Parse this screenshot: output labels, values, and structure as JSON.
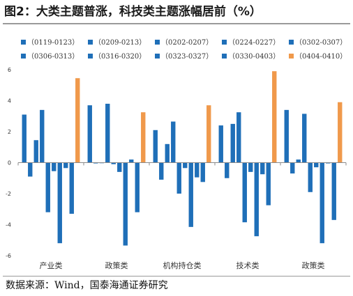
{
  "figure": {
    "title": "图2：大类主题普涨，科技类主题涨幅居前（%）",
    "source": "数据来源：Wind，国泰海通证券研究"
  },
  "colors": {
    "blue": "#1f6fb8",
    "orange": "#f0994b",
    "axis": "#8a8a8a",
    "text": "#333333"
  },
  "chart_data": {
    "type": "bar",
    "title": "",
    "xlabel": "",
    "ylabel": "",
    "ylim": [
      -6,
      6
    ],
    "yticks": [
      "6",
      "4",
      "2",
      "0",
      "-2",
      "-4",
      "-6"
    ],
    "legend_position": "top",
    "categories": [
      "产业类",
      "政策类",
      "机构持仓类",
      "技术类",
      "政策类"
    ],
    "series": [
      {
        "name": "（0119-0123）",
        "color": "#1f6fb8",
        "values": [
          3.1,
          3.7,
          2.1,
          2.4,
          3.4
        ]
      },
      {
        "name": "（0209-0213）",
        "color": "#1f6fb8",
        "values": [
          -0.9,
          -0.05,
          -1.1,
          -1.0,
          -0.7
        ]
      },
      {
        "name": "（0202-0207）",
        "color": "#1f6fb8",
        "values": [
          1.45,
          0.0,
          1.2,
          2.5,
          0.2
        ]
      },
      {
        "name": "（0224-0227）",
        "color": "#1f6fb8",
        "values": [
          3.4,
          3.8,
          2.65,
          3.25,
          3.15
        ]
      },
      {
        "name": "（0302-0307）",
        "color": "#1f6fb8",
        "values": [
          -3.2,
          -0.1,
          -2.0,
          -3.85,
          -1.9
        ]
      },
      {
        "name": "（0306-0313）",
        "color": "#1f6fb8",
        "values": [
          -0.55,
          -0.6,
          -0.35,
          -0.6,
          -0.3
        ]
      },
      {
        "name": "（0316-0320）",
        "color": "#1f6fb8",
        "values": [
          -5.2,
          -5.35,
          -4.15,
          -4.75,
          -5.2
        ]
      },
      {
        "name": "（0323-0327）",
        "color": "#1f6fb8",
        "values": [
          -0.35,
          0.2,
          -0.95,
          -0.75,
          -0.05
        ]
      },
      {
        "name": "（0330-0403）",
        "color": "#1f6fb8",
        "values": [
          -3.3,
          -3.2,
          -1.25,
          -2.75,
          -3.7
        ]
      },
      {
        "name": "（0404-0410）",
        "color": "#f0994b",
        "values": [
          5.45,
          3.25,
          3.7,
          5.9,
          3.9
        ]
      }
    ]
  }
}
